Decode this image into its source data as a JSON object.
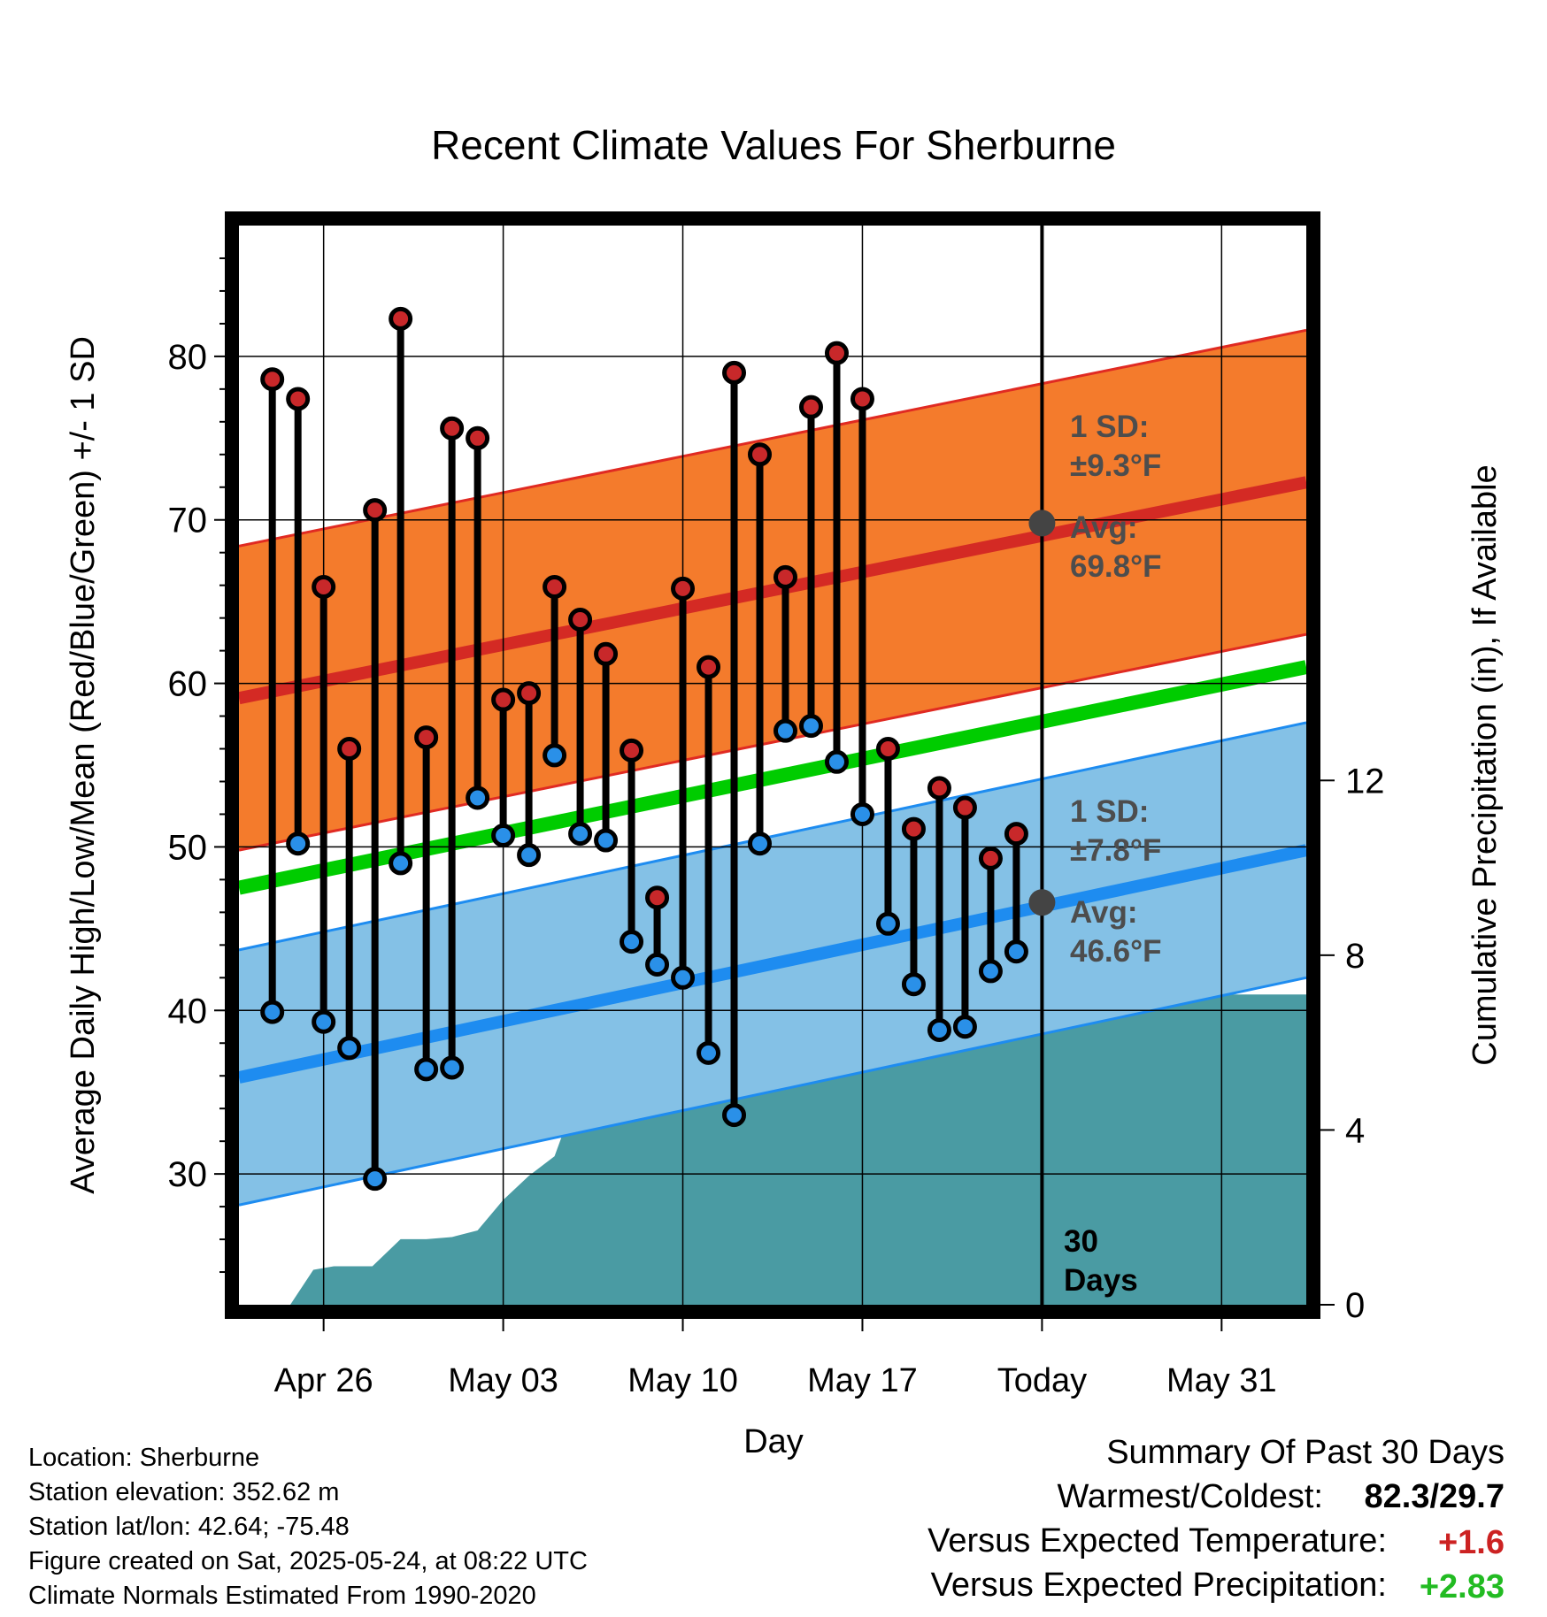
{
  "chart_data": {
    "type": "line",
    "title": "Recent Climate Values For Sherburne",
    "xlabel": "Day",
    "ylabel": "Average Daily High/Low/Mean (Red/Blue/Green) +/- 1 SD",
    "y2label": "Cumulative Precipitation (in), If Available",
    "ylim": [
      22,
      88
    ],
    "y2lim": [
      0,
      24.7
    ],
    "yticks": [
      30,
      40,
      50,
      60,
      70,
      80
    ],
    "y2ticks": [
      0,
      4,
      8,
      12
    ],
    "x_range_days": [
      -31.3,
      10.3
    ],
    "x_ticks": [
      {
        "day": -28,
        "label": "Apr 26"
      },
      {
        "day": -21,
        "label": "May 03"
      },
      {
        "day": -14,
        "label": "May 10"
      },
      {
        "day": -7,
        "label": "May 17"
      },
      {
        "day": 0,
        "label": "Today"
      },
      {
        "day": 7,
        "label": "May 31"
      }
    ],
    "grid": true,
    "today_day": 0,
    "today_label": [
      "30",
      "Days"
    ],
    "high_normal": {
      "mean_start": 59.1,
      "mean_end": 72.3,
      "sd": 9.3,
      "label_sd": [
        "1 SD:",
        "±9.3°F"
      ],
      "label_avg": [
        "Avg:",
        "69.8°F"
      ],
      "today_value": 69.8
    },
    "low_normal": {
      "mean_start": 35.9,
      "mean_end": 49.8,
      "sd": 7.8,
      "label_sd": [
        "1 SD:",
        "±7.8°F"
      ],
      "label_avg": [
        "Avg:",
        "46.6°F"
      ],
      "today_value": 46.6
    },
    "mean_normal": {
      "start": 47.5,
      "end": 61.0
    },
    "daily": [
      {
        "day": -30,
        "high": 78.6,
        "low": 39.9
      },
      {
        "day": -29,
        "high": 77.4,
        "low": 50.2
      },
      {
        "day": -28,
        "high": 65.9,
        "low": 39.3
      },
      {
        "day": -27,
        "high": 56.0,
        "low": 37.7
      },
      {
        "day": -26,
        "high": 70.6,
        "low": 29.7
      },
      {
        "day": -25,
        "high": 82.3,
        "low": 49.0
      },
      {
        "day": -24,
        "high": 56.7,
        "low": 36.4
      },
      {
        "day": -23,
        "high": 75.6,
        "low": 36.5
      },
      {
        "day": -22,
        "high": 75.0,
        "low": 53.0
      },
      {
        "day": -21,
        "high": 59.0,
        "low": 50.7
      },
      {
        "day": -20,
        "high": 59.4,
        "low": 49.5
      },
      {
        "day": -19,
        "high": 65.9,
        "low": 55.6
      },
      {
        "day": -18,
        "high": 63.9,
        "low": 50.8
      },
      {
        "day": -17,
        "high": 61.8,
        "low": 50.4
      },
      {
        "day": -16,
        "high": 55.9,
        "low": 44.2
      },
      {
        "day": -15,
        "high": 46.9,
        "low": 42.8
      },
      {
        "day": -14,
        "high": 65.8,
        "low": 42.0
      },
      {
        "day": -13,
        "high": 61.0,
        "low": 37.4
      },
      {
        "day": -12,
        "high": 79.0,
        "low": 33.6
      },
      {
        "day": -11,
        "high": 74.0,
        "low": 50.2
      },
      {
        "day": -10,
        "high": 66.5,
        "low": 57.1
      },
      {
        "day": -9,
        "high": 76.9,
        "low": 57.4
      },
      {
        "day": -8,
        "high": 80.2,
        "low": 55.2
      },
      {
        "day": -7,
        "high": 77.4,
        "low": 52.0
      },
      {
        "day": -6,
        "high": 56.0,
        "low": 45.3
      },
      {
        "day": -5,
        "high": 51.1,
        "low": 41.6
      },
      {
        "day": -4,
        "high": 53.6,
        "low": 38.8
      },
      {
        "day": -3,
        "high": 52.4,
        "low": 39.0
      },
      {
        "day": -2,
        "high": 49.3,
        "low": 42.4
      },
      {
        "day": -1,
        "high": 50.8,
        "low": 43.6
      }
    ],
    "precip_cumulative": [
      {
        "day": -31.3,
        "value": 0
      },
      {
        "day": -29.3,
        "value": 0
      },
      {
        "day": -28.4,
        "value": 0.8
      },
      {
        "day": -27.6,
        "value": 0.88
      },
      {
        "day": -26.1,
        "value": 0.88
      },
      {
        "day": -25,
        "value": 1.5
      },
      {
        "day": -24,
        "value": 1.5
      },
      {
        "day": -23,
        "value": 1.55
      },
      {
        "day": -22,
        "value": 1.7
      },
      {
        "day": -21,
        "value": 2.4
      },
      {
        "day": -20,
        "value": 2.95
      },
      {
        "day": -19,
        "value": 3.4
      },
      {
        "day": -18,
        "value": 5.0
      },
      {
        "day": -17,
        "value": 5.1
      },
      {
        "day": -16,
        "value": 5.1
      },
      {
        "day": -15,
        "value": 5.85
      },
      {
        "day": -14,
        "value": 5.85
      },
      {
        "day": -13,
        "value": 5.85
      },
      {
        "day": -12,
        "value": 5.85
      },
      {
        "day": -11,
        "value": 5.9
      },
      {
        "day": -10,
        "value": 5.9
      },
      {
        "day": -9,
        "value": 5.9
      },
      {
        "day": -8,
        "value": 6.5
      },
      {
        "day": -7,
        "value": 6.65
      },
      {
        "day": -6,
        "value": 6.65
      },
      {
        "day": -5,
        "value": 6.65
      },
      {
        "day": -4,
        "value": 6.65
      },
      {
        "day": -3,
        "value": 6.8
      },
      {
        "day": -2,
        "value": 7.0
      },
      {
        "day": -1,
        "value": 7.1
      },
      {
        "day": 10.3,
        "value": 7.1
      }
    ],
    "colors": {
      "high_band": "#f47b2c",
      "high_band_edge": "#e02a22",
      "high_line": "#d42a24",
      "low_band": "#84c1e6",
      "low_band_edge": "#1e8cf0",
      "low_line": "#1e8cf0",
      "mean_line": "#00cc00",
      "precip": "#4a9ba3",
      "high_dot": "#c8282a",
      "low_dot": "#2a90e8",
      "label_gray": "#4d4d4d",
      "avg_marker": "#444444"
    }
  },
  "footer": {
    "location": "Location: Sherburne",
    "elevation": "Station elevation: 352.62 m",
    "latlon": "Station lat/lon: 42.64; -75.48",
    "created": "Figure created on Sat, 2025-05-24, at 08:22 UTC",
    "normals": "Climate Normals Estimated From 1990-2020"
  },
  "summary": {
    "title": "Summary Of Past 30 Days",
    "warm_cold_label": "Warmest/Coldest:",
    "warm_cold_value": "82.3/29.7",
    "temp_label": "Versus Expected Temperature:",
    "temp_value": "+1.6",
    "precip_label": "Versus Expected Precipitation:",
    "precip_value": "+2.83",
    "temp_value_color": "#cc2222",
    "precip_value_color": "#22bb22"
  }
}
